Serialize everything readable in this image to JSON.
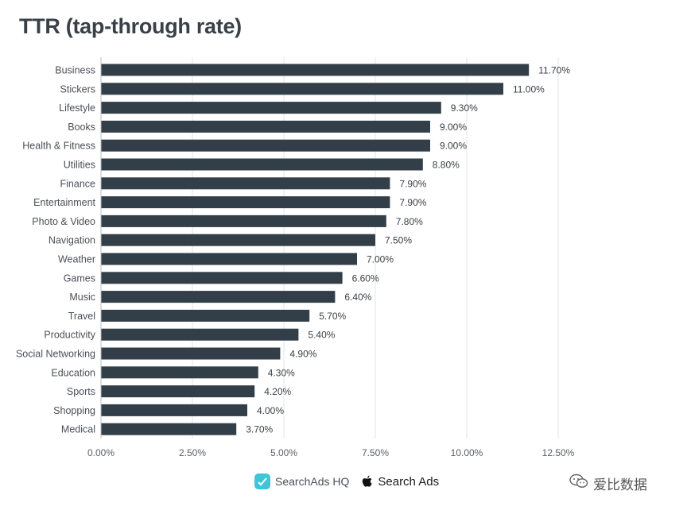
{
  "chart_data": {
    "type": "bar",
    "orientation": "horizontal",
    "title": "TTR (tap-through rate)",
    "xlabel": "",
    "ylabel": "",
    "xlim": [
      0,
      12.5
    ],
    "x_ticks": [
      "0.00%",
      "2.50%",
      "5.00%",
      "7.50%",
      "10.00%",
      "12.50%"
    ],
    "grid": true,
    "categories": [
      "Business",
      "Stickers",
      "Lifestyle",
      "Books",
      "Health & Fitness",
      "Utilities",
      "Finance",
      "Entertainment",
      "Photo & Video",
      "Navigation",
      "Weather",
      "Games",
      "Music",
      "Travel",
      "Productivity",
      "Social Networking",
      "Education",
      "Sports",
      "Shopping",
      "Medical"
    ],
    "values": [
      11.7,
      11.0,
      9.3,
      9.0,
      9.0,
      8.8,
      7.9,
      7.9,
      7.8,
      7.5,
      7.0,
      6.6,
      6.4,
      5.7,
      5.4,
      4.9,
      4.3,
      4.2,
      4.0,
      3.7
    ],
    "value_labels": [
      "11.70%",
      "11.00%",
      "9.30%",
      "9.00%",
      "9.00%",
      "8.80%",
      "7.90%",
      "7.90%",
      "7.80%",
      "7.50%",
      "7.00%",
      "6.60%",
      "6.40%",
      "5.70%",
      "5.40%",
      "4.90%",
      "4.30%",
      "4.20%",
      "4.00%",
      "3.70%"
    ],
    "bar_color": "#333f48",
    "grid_color": "#e2e4e7"
  },
  "legend": {
    "searchads_hq": "SearchAds HQ",
    "apple_search_ads": "Search Ads",
    "hq_icon": "searchads-hq-logo-icon",
    "apple_icon": "apple-logo-icon"
  },
  "watermark": {
    "text": "爱比数据",
    "icon": "wechat-icon"
  }
}
